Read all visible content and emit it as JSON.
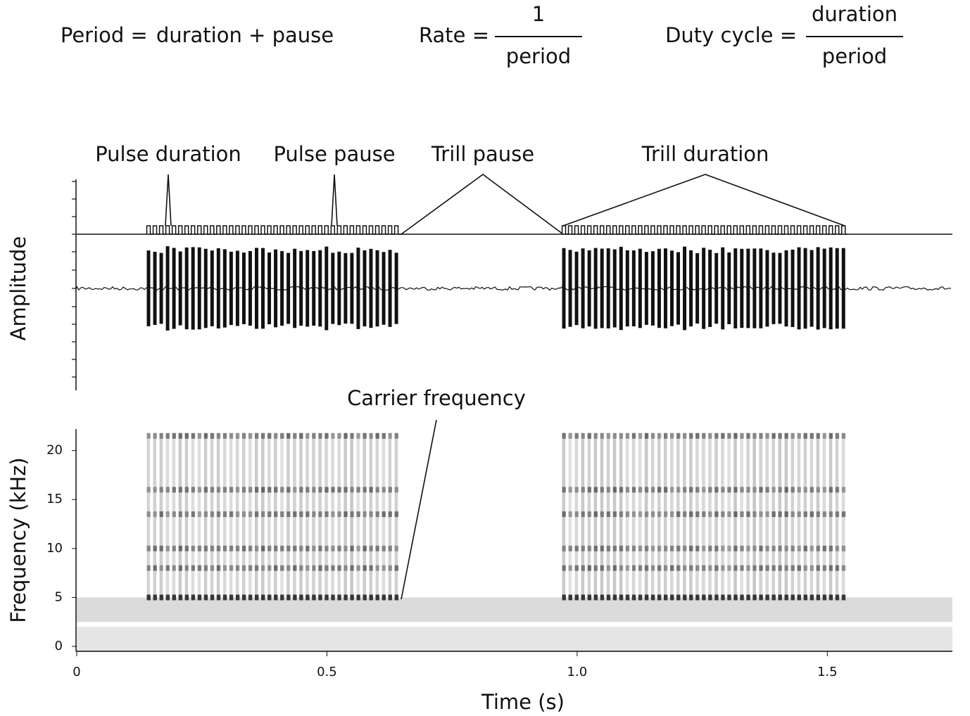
{
  "formulas": [
    {
      "lhs": "Period =",
      "expr": "duration + pause"
    },
    {
      "lhs": "Rate =",
      "numerator": "1",
      "denominator": "period"
    },
    {
      "lhs": "Duty cycle =",
      "numerator": "duration",
      "denominator": "period"
    }
  ],
  "annotations": {
    "pulse_duration": "Pulse duration",
    "pulse_pause": "Pulse pause",
    "trill_pause": "Trill pause",
    "trill_duration": "Trill duration",
    "carrier_frequency": "Carrier frequency"
  },
  "chart_data": {
    "type": "spectrogram",
    "amplitude_label": "Amplitude",
    "xlabel": "Time (s)",
    "ylabel": "Frequency (kHz)",
    "xlim": [
      0,
      1.75
    ],
    "xticks": [
      0,
      0.5,
      {
        "value": 1,
        "label": "1.0"
      },
      1.5
    ],
    "ylim": [
      -0.5,
      22.2
    ],
    "yticks": [
      0,
      5,
      10,
      15,
      20
    ],
    "trills": [
      {
        "start": 0.14,
        "end": 0.65
      },
      {
        "start": 0.97,
        "end": 1.54
      }
    ],
    "pulse_period": 0.0127,
    "carrier_frequency": 5
  }
}
